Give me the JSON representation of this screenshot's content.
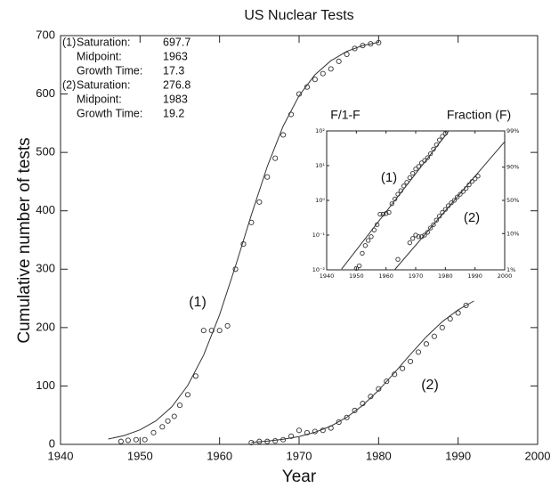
{
  "chart_data": [
    {
      "type": "scatter",
      "title": "US Nuclear Tests",
      "xlabel": "Year",
      "ylabel": "Cumulative number of tests",
      "xlim": [
        1940,
        2000
      ],
      "ylim": [
        0,
        700
      ],
      "xticks": [
        1940,
        1950,
        1960,
        1970,
        1980,
        1990,
        2000
      ],
      "yticks": [
        0,
        100,
        200,
        300,
        400,
        500,
        600,
        700
      ],
      "color": "#333333",
      "series": [
        {
          "name": "(1)",
          "x": [
            1947.6,
            1948.5,
            1949.5,
            1950.6,
            1951.7,
            1952.8,
            1953.5,
            1954.3,
            1955,
            1956,
            1957,
            1958,
            1959,
            1960,
            1961,
            1962,
            1963,
            1964,
            1965,
            1966,
            1967,
            1968,
            1969,
            1970,
            1971,
            1972,
            1973,
            1974,
            1975,
            1976,
            1977,
            1978,
            1979,
            1980
          ],
          "values": [
            5,
            7,
            8,
            8,
            20,
            30,
            40,
            48,
            67,
            85,
            117,
            195,
            195,
            195,
            203,
            300,
            343,
            380,
            415,
            458,
            490,
            530,
            565,
            600,
            612,
            625,
            635,
            643,
            656,
            668,
            678,
            683,
            686,
            688
          ],
          "fit_x": [
            1946,
            1948,
            1950,
            1952,
            1954,
            1956,
            1958,
            1960,
            1962,
            1964,
            1966,
            1968,
            1970,
            1972,
            1974,
            1976,
            1978,
            1980
          ],
          "fit_values": [
            9.2,
            15.1,
            24.8,
            40.3,
            64.4,
            100.8,
            153,
            222,
            305,
            393,
            476,
            545,
            597,
            633,
            657,
            673,
            683,
            688.5
          ]
        },
        {
          "name": "(2)",
          "x": [
            1964,
            1965,
            1966,
            1967,
            1968,
            1969,
            1970,
            1971,
            1972,
            1973,
            1974,
            1975,
            1976,
            1977,
            1978,
            1979,
            1980,
            1981,
            1982,
            1983,
            1984,
            1985,
            1986,
            1987,
            1988,
            1989,
            1990,
            1991
          ],
          "values": [
            3,
            5,
            5,
            6,
            8,
            14,
            24,
            20,
            22,
            24,
            28,
            38,
            46,
            58,
            70,
            82,
            95,
            108,
            120,
            130,
            142,
            158,
            172,
            185,
            200,
            215,
            225,
            238
          ],
          "fit_x": [
            1964,
            1966,
            1968,
            1970,
            1972,
            1974,
            1976,
            1978,
            1980,
            1982,
            1984,
            1986,
            1988,
            1990,
            1992
          ],
          "fit_values": [
            3.5,
            5.5,
            8.7,
            13.4,
            20.7,
            31.3,
            46.4,
            66.8,
            92.6,
            122.6,
            154.2,
            184.2,
            210,
            230.5,
            245.6
          ]
        }
      ],
      "annotations": [
        "(1)",
        "(2)"
      ],
      "fit_parameters": [
        {
          "label": "(1)",
          "rows": [
            [
              "Saturation:",
              697.7
            ],
            [
              "Midpoint:",
              1963
            ],
            [
              "Growth Time:",
              17.3
            ]
          ]
        },
        {
          "label": "(2)",
          "rows": [
            [
              "Saturation:",
              276.8
            ],
            [
              "Midpoint:",
              1983
            ],
            [
              "Growth Time:",
              19.2
            ]
          ]
        }
      ]
    },
    {
      "type": "scatter",
      "ylabel": "F/1-F",
      "y2label": "Fraction (F)",
      "log_y": true,
      "y2scale": "logit",
      "xlim": [
        1940,
        2000
      ],
      "ylim": [
        0.01,
        100
      ],
      "y2lim": [
        1,
        99
      ],
      "xticks": [
        1940,
        1950,
        1960,
        1970,
        1980,
        1990,
        2000
      ],
      "yticks": [
        {
          "value": 0.01,
          "label": "10⁻²"
        },
        {
          "value": 0.1,
          "label": "10⁻¹"
        },
        {
          "value": 1,
          "label": "10⁰"
        },
        {
          "value": 10,
          "label": "10¹"
        },
        {
          "value": 100,
          "label": "10²"
        }
      ],
      "y2ticks": [
        {
          "value": 1,
          "label": "1%"
        },
        {
          "value": 10,
          "label": "10%"
        },
        {
          "value": 50,
          "label": "50%"
        },
        {
          "value": 90,
          "label": "90%"
        },
        {
          "value": 99,
          "label": "99%"
        }
      ],
      "color": "#333333",
      "series": [
        {
          "name": "(1)",
          "x": [
            1950,
            1951,
            1952,
            1953,
            1954,
            1955,
            1956,
            1957,
            1958,
            1959,
            1960,
            1961,
            1962,
            1963,
            1964,
            1965,
            1966,
            1967,
            1968,
            1969,
            1970,
            1971,
            1972,
            1973,
            1974,
            1975,
            1976,
            1977,
            1978,
            1979,
            1980
          ],
          "values": [
            0.011,
            0.013,
            0.03,
            0.05,
            0.07,
            0.09,
            0.14,
            0.2,
            0.4,
            0.4,
            0.42,
            0.45,
            0.8,
            1.1,
            1.5,
            1.9,
            2.6,
            3.3,
            4.5,
            6,
            8,
            9.5,
            12,
            14,
            17,
            22,
            30,
            40,
            55,
            70,
            85
          ],
          "fit_x": [
            1945,
            1981
          ],
          "fit_values": [
            0.0105,
            95.5
          ]
        },
        {
          "name": "(2)",
          "x": [
            1964,
            1968,
            1969,
            1970,
            1971,
            1972,
            1973,
            1974,
            1975,
            1976,
            1977,
            1978,
            1979,
            1980,
            1981,
            1982,
            1983,
            1984,
            1985,
            1986,
            1987,
            1988,
            1989,
            1990,
            1991
          ],
          "values": [
            0.02,
            0.06,
            0.08,
            0.1,
            0.09,
            0.09,
            0.1,
            0.12,
            0.16,
            0.2,
            0.27,
            0.35,
            0.45,
            0.55,
            0.7,
            0.85,
            1.0,
            1.25,
            1.5,
            1.8,
            2.2,
            2.8,
            3.5,
            4.2,
            5
          ],
          "fit_x": [
            1963,
            2000
          ],
          "fit_values": [
            0.0103,
            49
          ]
        }
      ],
      "annotations": [
        "(1)",
        "(2)"
      ]
    }
  ]
}
